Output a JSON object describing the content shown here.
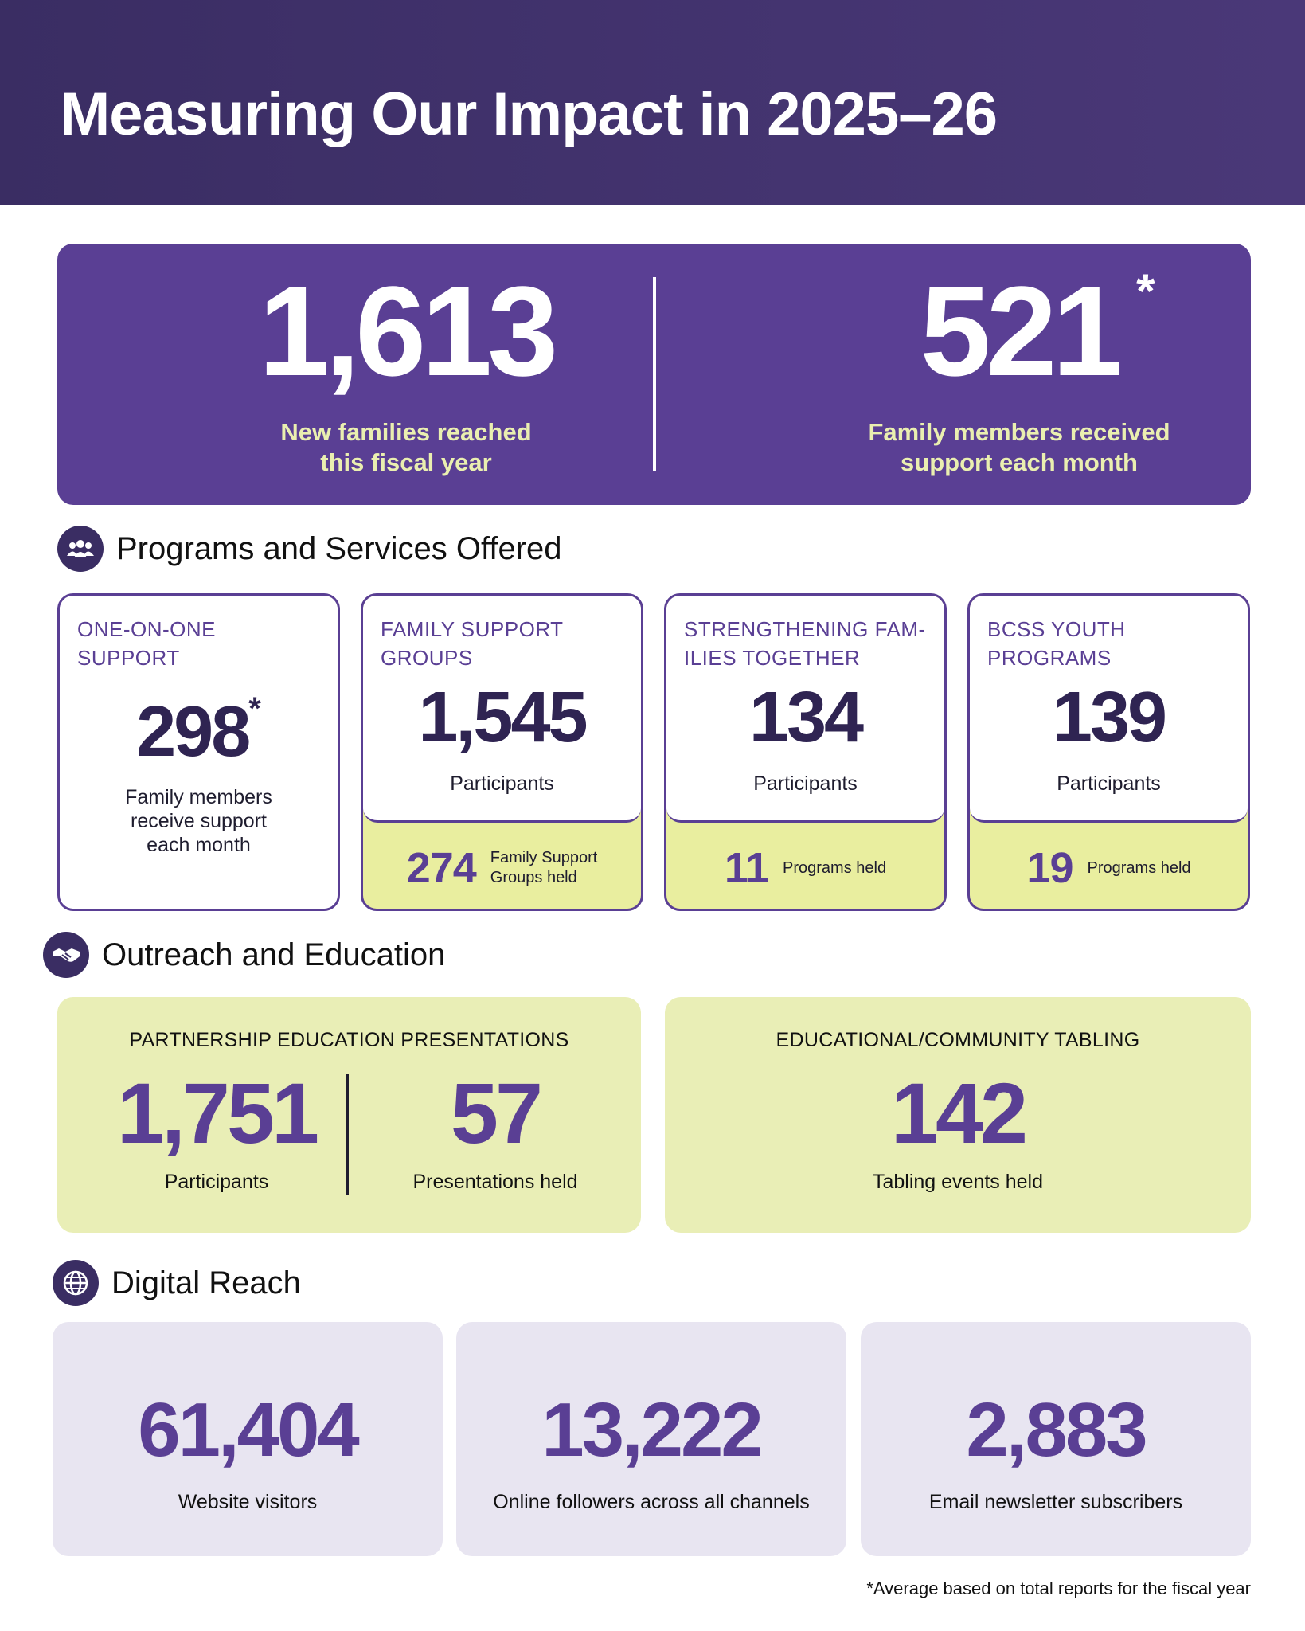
{
  "header": {
    "title": "Measuring Our Impact in 2025–26"
  },
  "hero": {
    "left": {
      "value": "1,613",
      "caption_line1": "New families reached",
      "caption_line2": "this fiscal year"
    },
    "right": {
      "value": "521",
      "asterisk": "*",
      "caption_line1": "Family members received",
      "caption_line2": "support each month"
    }
  },
  "programs": {
    "heading": "Programs and Services Offered",
    "icon": "people-group-icon",
    "cards": [
      {
        "title_line1": "ONE-ON-ONE",
        "title_line2": "SUPPORT",
        "value": "298",
        "asterisk": "*",
        "sub_line1": "Family members",
        "sub_line2": "receive support",
        "sub_line3": "each month"
      },
      {
        "title_line1": "FAMILY SUPPORT",
        "title_line2": "GROUPS",
        "value": "1,545",
        "sub": "Participants",
        "foot_value": "274",
        "foot_line1": "Family Support",
        "foot_line2": "Groups held"
      },
      {
        "title_line1": "STRENGTHENING FAM-",
        "title_line2": "ILIES TOGETHER",
        "value": "134",
        "sub": "Participants",
        "foot_value": "11",
        "foot_line1": "Programs held"
      },
      {
        "title_line1": "BCSS YOUTH",
        "title_line2": "PROGRAMS",
        "value": "139",
        "sub": "Participants",
        "foot_value": "19",
        "foot_line1": "Programs held"
      }
    ]
  },
  "outreach": {
    "heading": "Outreach and Education",
    "icon": "handshake-icon",
    "partnership": {
      "title": "PARTNERSHIP EDUCATION PRESENTATIONS",
      "participants_value": "1,751",
      "participants_label": "Participants",
      "presentations_value": "57",
      "presentations_label": "Presentations held"
    },
    "tabling": {
      "title": "EDUCATIONAL/COMMUNITY TABLING",
      "value": "142",
      "label": "Tabling events held"
    }
  },
  "digital": {
    "heading": "Digital Reach",
    "icon": "globe-icon",
    "cards": [
      {
        "value": "61,404",
        "label": "Website visitors"
      },
      {
        "value": "13,222",
        "label": "Online followers across all channels"
      },
      {
        "value": "2,883",
        "label": "Email newsletter subscribers"
      }
    ]
  },
  "footnote": "*Average based on total reports for the fiscal year",
  "colors": {
    "header": "#3a2d63",
    "purple": "#5a3f94",
    "lime": "#e9ee9f",
    "lavender": "#e8e5f1",
    "caption_yellow": "#eaefb0"
  }
}
